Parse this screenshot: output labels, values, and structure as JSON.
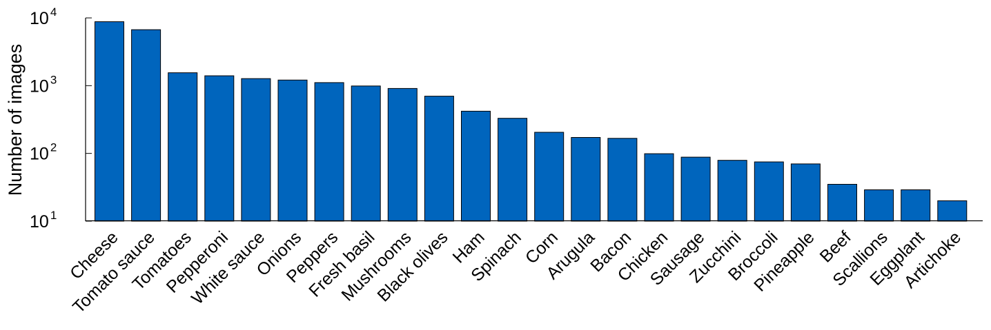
{
  "chart_data": {
    "type": "bar",
    "yscale": "log",
    "ylabel": "Number of images",
    "xlabel": "",
    "title": "",
    "ylim": [
      10,
      10000
    ],
    "yticks": [
      {
        "base": "10",
        "exp": "1",
        "value": 10
      },
      {
        "base": "10",
        "exp": "2",
        "value": 100
      },
      {
        "base": "10",
        "exp": "3",
        "value": 1000
      },
      {
        "base": "10",
        "exp": "4",
        "value": 10000
      }
    ],
    "grid": false,
    "bar_color": "#0065bd",
    "categories": [
      "Cheese",
      "Tomato sauce",
      "Tomatoes",
      "Pepperoni",
      "White sauce",
      "Onions",
      "Peppers",
      "Fresh basil",
      "Mushrooms",
      "Black olives",
      "Ham",
      "Spinach",
      "Corn",
      "Arugula",
      "Bacon",
      "Chicken",
      "Sausage",
      "Zucchini",
      "Broccoli",
      "Pineapple",
      "Beef",
      "Scallions",
      "Eggplant",
      "Artichoke"
    ],
    "values": [
      8800,
      6700,
      1550,
      1400,
      1270,
      1210,
      1110,
      990,
      910,
      700,
      420,
      330,
      205,
      172,
      167,
      99,
      88,
      79,
      75,
      70,
      35,
      29,
      29,
      20
    ]
  }
}
